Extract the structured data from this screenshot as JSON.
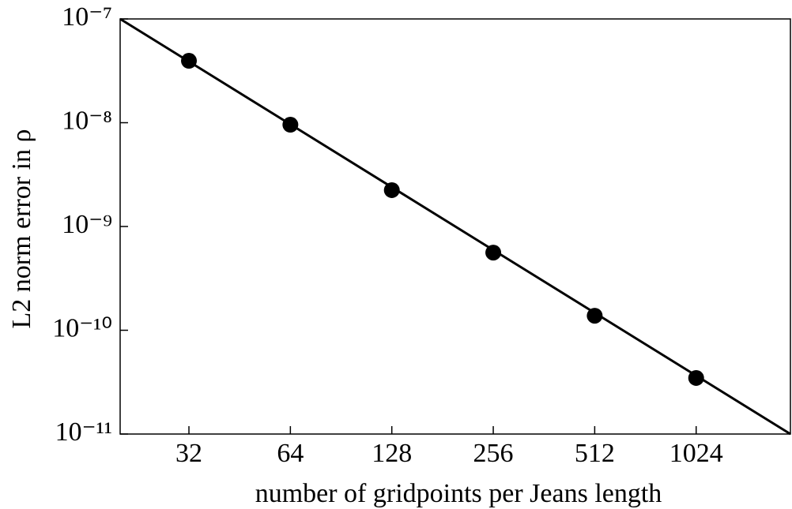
{
  "chart_data": {
    "type": "scatter",
    "xlabel": "number of gridpoints per Jeans length",
    "ylabel": "L2 norm error in ρ",
    "xscale": "log",
    "yscale": "log",
    "xlim": [
      20,
      1950
    ],
    "ylim": [
      1e-11,
      1e-07
    ],
    "xticks": [
      32,
      64,
      128,
      256,
      512,
      1024
    ],
    "yticks": [
      {
        "value": 1e-07,
        "label": "10⁻⁷"
      },
      {
        "value": 1e-08,
        "label": "10⁻⁸"
      },
      {
        "value": 1e-09,
        "label": "10⁻⁹"
      },
      {
        "value": 1e-10,
        "label": "10⁻¹⁰"
      },
      {
        "value": 1e-11,
        "label": "10⁻¹¹"
      }
    ],
    "series": [
      {
        "color": "#000000",
        "marker": "circle",
        "x": [
          32,
          64,
          128,
          256,
          512,
          1024
        ],
        "values": [
          3.95e-08,
          9.57e-09,
          2.24e-09,
          5.6e-10,
          1.38e-10,
          3.47e-11
        ]
      },
      {
        "color": "#000000",
        "marker": "line",
        "x": [
          20,
          1950
        ],
        "values": [
          1e-07,
          1e-11
        ]
      }
    ]
  }
}
